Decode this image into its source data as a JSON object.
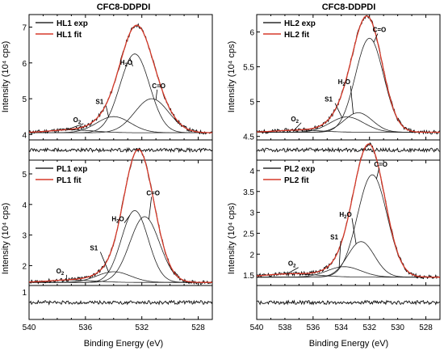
{
  "figure": {
    "xlabel": "Binding Energy (eV)",
    "ylabel": "Intensity (10⁴ cps)",
    "col_titles": [
      "CFC8-DDPDI",
      "CFC8-DDPDI"
    ]
  },
  "chart_data": [
    {
      "type": "line",
      "id": "HL1",
      "x_range": [
        540,
        527
      ],
      "ylim": [
        3.85,
        7.35
      ],
      "yticks": [
        4,
        5,
        6,
        7
      ],
      "xticks": [],
      "legend": [
        "HL1 exp",
        "HL1 fit"
      ],
      "legend_position": "top-left",
      "peaks": {
        "O2": [
          537.0,
          0.08,
          1.6
        ],
        "S1": [
          534.0,
          0.45,
          1.2
        ],
        "H2O": [
          532.5,
          2.2,
          1.05
        ],
        "C=O": [
          531.3,
          0.95,
          1.2
        ]
      },
      "baseline": 4.05,
      "annotations": [
        {
          "text": "O",
          "sub": "2",
          "x": 536.6,
          "y": 4.35
        },
        {
          "text": "S1",
          "x": 535.0,
          "y": 4.85
        },
        {
          "text": "H",
          "sub": "2",
          "after": "O",
          "x": 533.1,
          "y": 5.95
        },
        {
          "text": "C=O",
          "x": 530.8,
          "y": 5.3
        }
      ]
    },
    {
      "type": "line",
      "id": "HL2",
      "x_range": [
        540,
        527
      ],
      "ylim": [
        4.45,
        6.25
      ],
      "yticks": [
        4.5,
        5.0,
        5.5,
        6.0
      ],
      "xticks": [],
      "legend": [
        "HL2 exp",
        "HL2 fit"
      ],
      "legend_position": "top-left",
      "peaks": {
        "O2": [
          537.0,
          0.03,
          1.6
        ],
        "S1": [
          533.6,
          0.22,
          1.2
        ],
        "H2O": [
          532.8,
          0.28,
          1.0
        ],
        "C=O": [
          532.0,
          1.35,
          1.0
        ]
      },
      "baseline": 4.56,
      "annotations": [
        {
          "text": "O",
          "sub": "2",
          "x": 537.3,
          "y": 4.72
        },
        {
          "text": "S1",
          "x": 534.9,
          "y": 5.0
        },
        {
          "text": "H",
          "sub": "2",
          "after": "O",
          "x": 533.8,
          "y": 5.25
        },
        {
          "text": "C=O",
          "x": 531.3,
          "y": 6.0
        }
      ]
    },
    {
      "type": "line",
      "id": "PL1",
      "x_range": [
        540,
        527
      ],
      "ylim": [
        1.35,
        5.45
      ],
      "yticks": [
        2,
        3,
        4,
        5
      ],
      "xticks": [
        540,
        536,
        532,
        528
      ],
      "legend": [
        "PL1 exp",
        "PL1 fit"
      ],
      "legend_position": "top-left",
      "peaks": {
        "O2": [
          537.0,
          0.08,
          1.6
        ],
        "S1": [
          534.0,
          0.35,
          1.2
        ],
        "H2O": [
          532.5,
          2.35,
          0.95
        ],
        "C=O": [
          531.8,
          2.15,
          1.05
        ]
      },
      "baseline": 1.45,
      "annotations": [
        {
          "text": "O",
          "sub": "2",
          "x": 537.8,
          "y": 1.75
        },
        {
          "text": "S1",
          "x": 535.4,
          "y": 2.5
        },
        {
          "text": "H",
          "sub": "2",
          "after": "O",
          "x": 533.7,
          "y": 3.45
        },
        {
          "text": "C=O",
          "x": 531.2,
          "y": 4.3
        }
      ]
    },
    {
      "type": "line",
      "id": "PL2",
      "x_range": [
        540,
        527
      ],
      "ylim": [
        1.25,
        4.25
      ],
      "yticks": [
        1.5,
        2.0,
        2.5,
        3.0,
        3.5,
        4.0
      ],
      "xticks": [
        540,
        538,
        536,
        534,
        532,
        530,
        528
      ],
      "legend": [
        "PL2 exp",
        "PL2 fit"
      ],
      "legend_position": "top-left",
      "peaks": {
        "O2": [
          537.5,
          0.08,
          1.8
        ],
        "S1": [
          533.8,
          0.25,
          1.2
        ],
        "H2O": [
          532.6,
          0.85,
          0.95
        ],
        "C=O": [
          531.8,
          2.45,
          1.05
        ]
      },
      "baseline": 1.45,
      "annotations": [
        {
          "text": "O",
          "sub": "2",
          "x": 537.5,
          "y": 1.72
        },
        {
          "text": "S1",
          "x": 534.5,
          "y": 2.35
        },
        {
          "text": "H",
          "sub": "2",
          "after": "O",
          "x": 533.7,
          "y": 2.9
        },
        {
          "text": "C=O",
          "x": 531.2,
          "y": 4.1
        }
      ]
    }
  ]
}
